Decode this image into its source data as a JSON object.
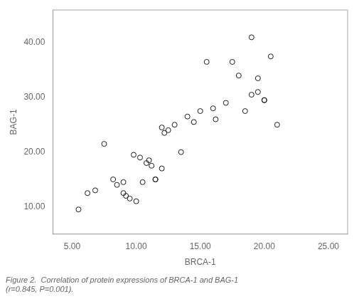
{
  "chart_data": {
    "type": "scatter",
    "x": [
      5.5,
      6.2,
      6.8,
      7.5,
      8.2,
      8.5,
      9.0,
      9.0,
      9.2,
      9.5,
      9.8,
      10.0,
      10.3,
      10.5,
      10.8,
      11.0,
      11.2,
      11.5,
      11.5,
      12.0,
      12.0,
      12.2,
      12.5,
      13.0,
      13.5,
      14.0,
      14.5,
      15.0,
      15.5,
      16.0,
      16.2,
      17.0,
      17.5,
      18.0,
      18.5,
      19.0,
      19.0,
      19.5,
      19.5,
      20.0,
      20.0,
      20.5,
      21.0
    ],
    "values": [
      9.5,
      12.5,
      13.0,
      21.5,
      15.0,
      14.0,
      14.5,
      12.5,
      12.0,
      11.5,
      19.5,
      11.0,
      19.0,
      14.5,
      18.0,
      18.5,
      17.5,
      15.0,
      15.0,
      17.0,
      24.5,
      23.5,
      24.0,
      25.0,
      20.0,
      26.5,
      25.5,
      27.5,
      36.5,
      28.0,
      26.0,
      29.0,
      36.5,
      34.0,
      27.5,
      30.5,
      41.0,
      31.0,
      33.5,
      29.5,
      29.5,
      37.5,
      25.0
    ],
    "x_label": "BRCA-1",
    "y_label": "BAG-1",
    "xlim": [
      3.5,
      26.5
    ],
    "ylim": [
      5.0,
      46.0
    ],
    "xticks": [
      {
        "value": 5,
        "label": "5.00"
      },
      {
        "value": 10,
        "label": "10.00"
      },
      {
        "value": 15,
        "label": "15.00"
      },
      {
        "value": 20,
        "label": "20.00"
      },
      {
        "value": 25,
        "label": "25.00"
      }
    ],
    "yticks": [
      {
        "value": 10,
        "label": "10.00"
      },
      {
        "value": 20,
        "label": "20.00"
      },
      {
        "value": 30,
        "label": "30.00"
      },
      {
        "value": 40,
        "label": "40.00"
      }
    ],
    "color": "#1a1a1a",
    "marker": "circle",
    "grid": false,
    "annotations": [
      "Figure 2.  Correlation of protein expressions of BRCA-1 and BAG-1\n(r=0.845, P=0.001)."
    ]
  }
}
